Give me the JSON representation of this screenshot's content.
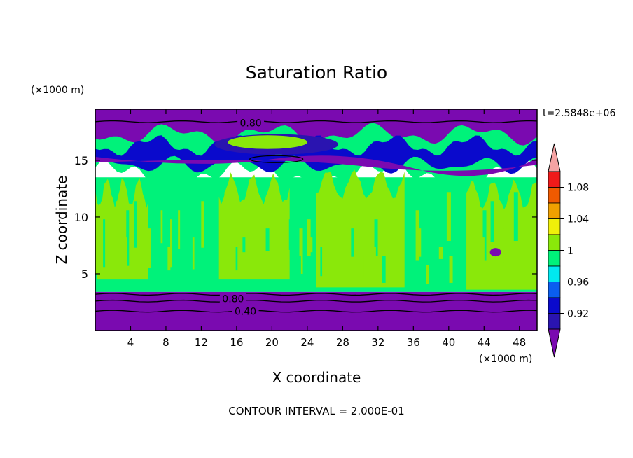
{
  "chart_data": {
    "type": "heatmap",
    "title": "Saturation Ratio",
    "xlabel": "X coordinate",
    "ylabel": "Z coordinate",
    "x_unit": "(×1000 m)",
    "y_unit": "(×1000 m)",
    "time_label": "t=2.5848e+06",
    "footer": "CONTOUR INTERVAL = 2.000E-01",
    "xlim": [
      0,
      50
    ],
    "ylim": [
      0,
      19.5
    ],
    "x_ticks": [
      4,
      8,
      12,
      16,
      20,
      24,
      28,
      32,
      36,
      40,
      44,
      48
    ],
    "y_ticks": [
      5,
      10,
      15
    ],
    "contour_labels": [
      {
        "text": "0.80",
        "x": 17.6,
        "y": 18.3
      },
      {
        "text": "0.80",
        "x": 15.6,
        "y": 2.8
      },
      {
        "text": "0.40",
        "x": 17.0,
        "y": 1.7
      }
    ],
    "colorbar": {
      "labels": [
        "0.92",
        "0.96",
        "1",
        "1.04",
        "1.08"
      ],
      "levels": [
        0.9,
        0.92,
        0.94,
        0.96,
        0.98,
        1.0,
        1.02,
        1.04,
        1.06,
        1.08,
        1.1
      ],
      "colors": [
        "#7a0ab0",
        "#2a14b0",
        "#0a0acc",
        "#0a5ef0",
        "#00e8f0",
        "#00f27a",
        "#8ae80a",
        "#f0f00a",
        "#f0a000",
        "#f05a00",
        "#f01a1a",
        "#f5a3a3"
      ]
    },
    "fields": {
      "upper_dry_layer": {
        "z_range": [
          15.3,
          19.5
        ],
        "value": 0.78
      },
      "ice_band": {
        "z_range": [
          13.0,
          17.5
        ],
        "value": 0.93
      },
      "mid_layer": {
        "z_range": [
          3.4,
          13.5
        ],
        "value": 0.99
      },
      "supersaturated_patches": {
        "value": 1.01,
        "x_centers": [
          6,
          17,
          28,
          45
        ]
      },
      "lower_dry_layer": {
        "z_range": [
          0,
          3.4
        ],
        "value": 0.6
      }
    }
  }
}
